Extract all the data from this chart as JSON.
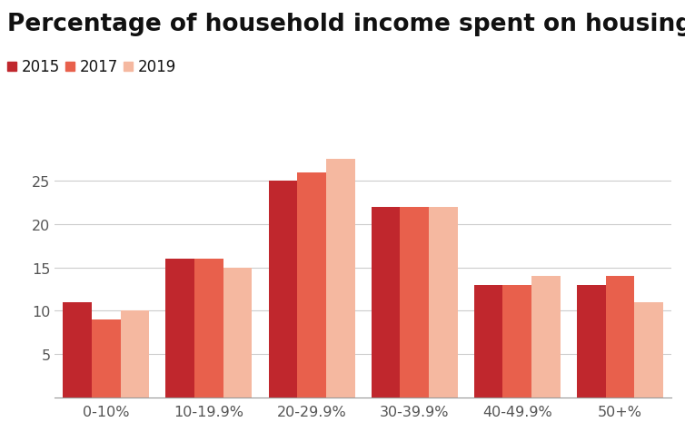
{
  "title": "Percentage of household income spent on housing",
  "categories": [
    "0-10%",
    "10-19.9%",
    "20-29.9%",
    "30-39.9%",
    "40-49.9%",
    "50+%"
  ],
  "series": {
    "2015": [
      11,
      16,
      25,
      22,
      13,
      13
    ],
    "2017": [
      9,
      16,
      26,
      22,
      13,
      14
    ],
    "2019": [
      10,
      15,
      27.5,
      22,
      14,
      11
    ]
  },
  "colors": {
    "2015": "#c0272d",
    "2017": "#e8604c",
    "2019": "#f5b8a0"
  },
  "legend_labels": [
    "2015",
    "2017",
    "2019"
  ],
  "ylim": [
    0,
    30
  ],
  "yticks": [
    5,
    10,
    15,
    20,
    25
  ],
  "background_color": "#ffffff",
  "title_fontsize": 19,
  "tick_fontsize": 11.5,
  "legend_fontsize": 12,
  "bar_width": 0.28
}
